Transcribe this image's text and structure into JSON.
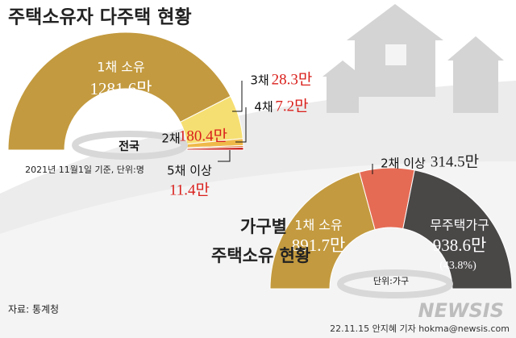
{
  "title": "주택소유자 다주택 현황",
  "source": "자료: 통계청",
  "credit": "22.11.15 안지혜 기자 hokma@newsis.com",
  "watermark": "NEWSIS",
  "chart_data": [
    {
      "type": "semi-donut",
      "center_label": "전국",
      "note": "2021년 11월1일 기준, 단위:명",
      "categories": [
        "1채 소유",
        "2채",
        "3채",
        "4채",
        "5채 이상"
      ],
      "values": [
        1281.6,
        180.4,
        28.3,
        7.2,
        11.4
      ],
      "value_labels": [
        "1281.6만",
        "180.4만",
        "28.3만",
        "7.2만",
        "11.4만"
      ],
      "colors": [
        "#c39a3f",
        "#f6df72",
        "#efb94a",
        "#d9762e",
        "#c8201c"
      ]
    },
    {
      "type": "semi-donut",
      "title": [
        "가구별",
        "주택소유 현황"
      ],
      "center_label": "단위:가구",
      "categories": [
        "1채 소유",
        "2채 이상",
        "무주택가구"
      ],
      "values": [
        891.7,
        314.5,
        938.6
      ],
      "value_labels": [
        "891.7만",
        "314.5만",
        "938.6만"
      ],
      "annotations": [
        "(43.8%)"
      ],
      "colors": [
        "#c39a3f",
        "#e56b55",
        "#4a4747"
      ]
    }
  ]
}
